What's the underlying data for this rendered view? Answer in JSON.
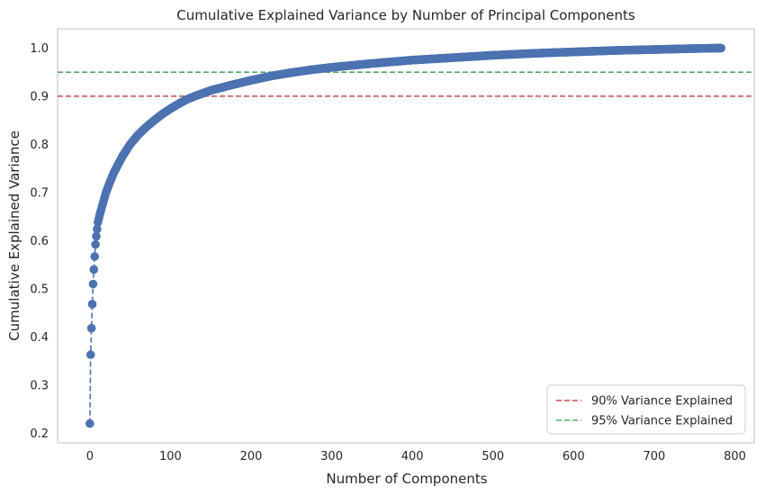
{
  "chart_data": {
    "type": "line",
    "title": "Cumulative Explained Variance by Number of Principal Components",
    "xlabel": "Number of Components",
    "ylabel": "Cumulative Explained Variance",
    "xlim": [
      -40,
      824
    ],
    "ylim": [
      0.18,
      1.04
    ],
    "xticks": [
      0,
      100,
      200,
      300,
      400,
      500,
      600,
      700,
      800
    ],
    "yticks": [
      0.2,
      0.3,
      0.4,
      0.5,
      0.6,
      0.7,
      0.8,
      0.9,
      1.0
    ],
    "xtick_labels": [
      "0",
      "100",
      "200",
      "300",
      "400",
      "500",
      "600",
      "700",
      "800"
    ],
    "ytick_labels": [
      "0.2",
      "0.3",
      "0.4",
      "0.5",
      "0.6",
      "0.7",
      "0.8",
      "0.9",
      "1.0"
    ],
    "grid": false,
    "legend_position": "lower-right",
    "series": [
      {
        "color": "#4c72b0",
        "marker": "circle",
        "linestyle": "dashed",
        "x_range": [
          0,
          783
        ],
        "points": [
          [
            0,
            0.22
          ],
          [
            1,
            0.363
          ],
          [
            2,
            0.418
          ],
          [
            3,
            0.468
          ],
          [
            4,
            0.51
          ],
          [
            5,
            0.54
          ],
          [
            6,
            0.567
          ],
          [
            7,
            0.592
          ],
          [
            8,
            0.609
          ],
          [
            9,
            0.624
          ],
          [
            10,
            0.638
          ],
          [
            12,
            0.652
          ],
          [
            15,
            0.67
          ],
          [
            20,
            0.7
          ],
          [
            25,
            0.722
          ],
          [
            30,
            0.742
          ],
          [
            40,
            0.774
          ],
          [
            50,
            0.8
          ],
          [
            60,
            0.82
          ],
          [
            70,
            0.836
          ],
          [
            80,
            0.85
          ],
          [
            90,
            0.863
          ],
          [
            100,
            0.874
          ],
          [
            110,
            0.884
          ],
          [
            120,
            0.893
          ],
          [
            130,
            0.9
          ],
          [
            150,
            0.912
          ],
          [
            175,
            0.923
          ],
          [
            200,
            0.933
          ],
          [
            225,
            0.942
          ],
          [
            250,
            0.949
          ],
          [
            275,
            0.955
          ],
          [
            300,
            0.96
          ],
          [
            350,
            0.968
          ],
          [
            400,
            0.975
          ],
          [
            450,
            0.98
          ],
          [
            500,
            0.985
          ],
          [
            550,
            0.989
          ],
          [
            600,
            0.992
          ],
          [
            650,
            0.995
          ],
          [
            700,
            0.997
          ],
          [
            750,
            0.999
          ],
          [
            783,
            1.0
          ]
        ]
      }
    ],
    "reference_lines": [
      {
        "y": 0.9,
        "color": "#c44e52",
        "label": "90% Variance Explained"
      },
      {
        "y": 0.95,
        "color": "#55a868",
        "label": "95% Variance Explained"
      }
    ]
  }
}
